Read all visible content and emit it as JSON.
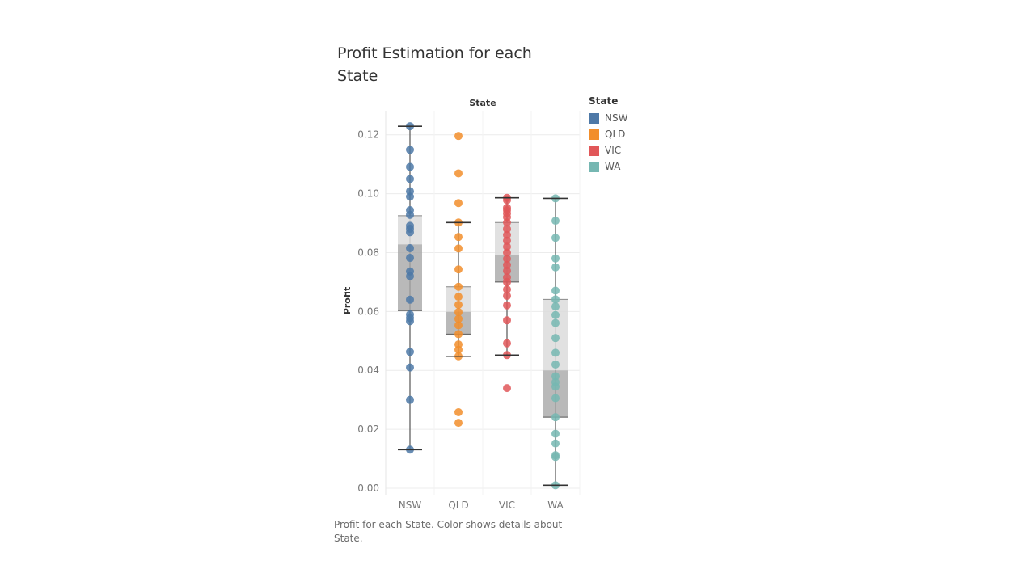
{
  "title": "Profit Estimation for each State",
  "caption": "Profit for each State.  Color shows details about State.",
  "legend": {
    "title": "State",
    "items": [
      {
        "label": "NSW",
        "color": "#4e79a7"
      },
      {
        "label": "QLD",
        "color": "#f28e2b"
      },
      {
        "label": "VIC",
        "color": "#e15759"
      },
      {
        "label": "WA",
        "color": "#76b7b2"
      }
    ]
  },
  "chart_data": {
    "type": "scatter",
    "variant": "box-plot with jittered points",
    "xlabel": "State",
    "ylabel": "Profit",
    "categories": [
      "NSW",
      "QLD",
      "VIC",
      "WA"
    ],
    "ylim": [
      0,
      0.125
    ],
    "yticks": [
      "0.00",
      "0.02",
      "0.04",
      "0.06",
      "0.08",
      "0.10",
      "0.12"
    ],
    "ytick_values": [
      0,
      0.02,
      0.04,
      0.06,
      0.08,
      0.1,
      0.12
    ],
    "grid": true,
    "legend_position": "right",
    "boxes": [
      {
        "category": "NSW",
        "min": 0.0131,
        "q1": 0.0603,
        "median": 0.0828,
        "q3": 0.0925,
        "max": 0.1229
      },
      {
        "category": "QLD",
        "min": 0.0448,
        "q1": 0.0523,
        "median": 0.0599,
        "q3": 0.0684,
        "max": 0.0902
      },
      {
        "category": "VIC",
        "min": 0.0452,
        "q1": 0.07,
        "median": 0.0792,
        "q3": 0.0902,
        "max": 0.0986
      },
      {
        "category": "WA",
        "min": 0.001,
        "q1": 0.0241,
        "median": 0.04,
        "q3": 0.0641,
        "max": 0.0984
      }
    ],
    "series": [
      {
        "name": "NSW",
        "values": [
          0.1229,
          0.1149,
          0.1091,
          0.105,
          0.1008,
          0.099,
          0.0944,
          0.0928,
          0.0891,
          0.0881,
          0.0869,
          0.0815,
          0.0782,
          0.0736,
          0.072,
          0.064,
          0.059,
          0.0578,
          0.0567,
          0.0463,
          0.041,
          0.03,
          0.0131
        ]
      },
      {
        "name": "QLD",
        "values": [
          0.1196,
          0.1069,
          0.0968,
          0.0902,
          0.0853,
          0.0814,
          0.0743,
          0.0684,
          0.065,
          0.0623,
          0.0598,
          0.0575,
          0.0553,
          0.0523,
          0.0488,
          0.047,
          0.0448,
          0.0258,
          0.0222
        ]
      },
      {
        "name": "VIC",
        "values": [
          0.0986,
          0.0978,
          0.0952,
          0.0944,
          0.0933,
          0.092,
          0.0902,
          0.088,
          0.086,
          0.084,
          0.082,
          0.08,
          0.0779,
          0.0758,
          0.0738,
          0.0716,
          0.07,
          0.0675,
          0.0653,
          0.0621,
          0.057,
          0.0492,
          0.0452,
          0.034
        ]
      },
      {
        "name": "WA",
        "values": [
          0.0984,
          0.0908,
          0.085,
          0.078,
          0.075,
          0.0671,
          0.0641,
          0.0617,
          0.0588,
          0.0561,
          0.051,
          0.046,
          0.042,
          0.038,
          0.036,
          0.0345,
          0.0306,
          0.0241,
          0.0185,
          0.0152,
          0.0112,
          0.0106,
          0.001
        ]
      }
    ]
  }
}
